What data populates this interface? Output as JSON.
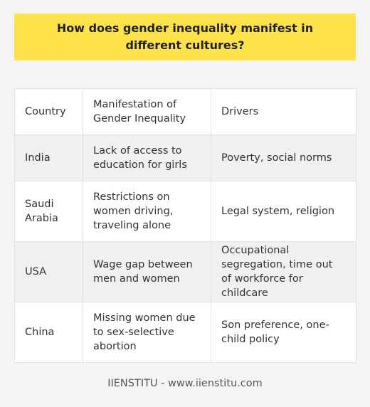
{
  "title": "How does gender inequality manifest in different cultures?",
  "table": {
    "headers": [
      "Country",
      "Manifestation of Gender Inequality",
      "Drivers"
    ],
    "rows": [
      {
        "country": "India",
        "manifestation": "Lack of access to education for girls",
        "drivers": "Poverty, social norms"
      },
      {
        "country": "Saudi Arabia",
        "manifestation": "Restrictions on women driving, traveling alone",
        "drivers": "Legal system, religion"
      },
      {
        "country": "USA",
        "manifestation": "Wage gap between men and women",
        "drivers": "Occupational segregation, time out of workforce for childcare"
      },
      {
        "country": "China",
        "manifestation": "Missing women due to sex-selective abortion",
        "drivers": "Son preference, one-child policy"
      }
    ]
  },
  "footer": "IIENSTITU - www.iienstitu.com",
  "colors": {
    "banner": "#fde24a",
    "background": "#f4f4f4",
    "row_alt": "#f0f0f0"
  }
}
